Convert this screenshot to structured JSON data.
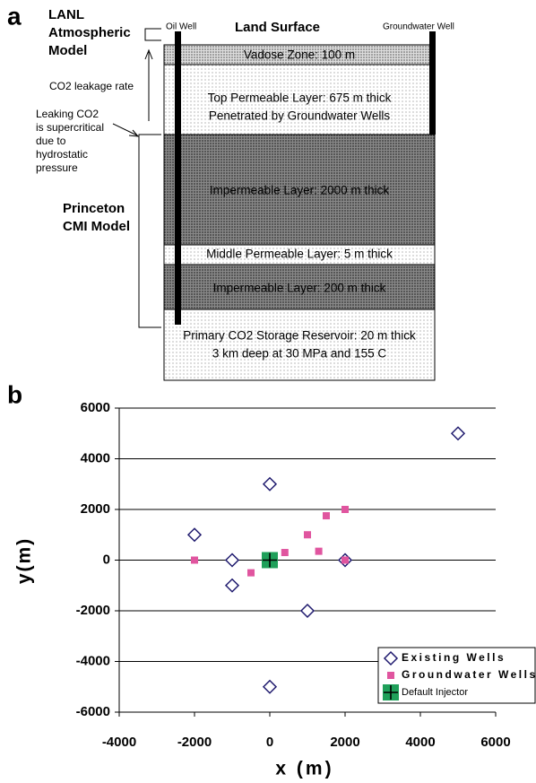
{
  "diagram": {
    "panel_label": "a",
    "lanl": [
      "LANL",
      "Atmospheric",
      "Model"
    ],
    "leakage_rate": "CO2 leakage rate",
    "leaking": [
      "Leaking CO2",
      "is supercritical",
      "due to",
      "hydrostatic",
      "pressure"
    ],
    "princeton": [
      "Princeton",
      "CMI Model"
    ],
    "oil_well": "Oil Well",
    "land_surface": "Land Surface",
    "groundwater_well": "Groundwater Well",
    "layers": [
      [
        "Vadose Zone: 100 m"
      ],
      [
        "Top Permeable Layer: 675 m thick",
        "Penetrated by Groundwater Wells"
      ],
      [
        "Impermeable Layer: 2000 m thick"
      ],
      [
        "Middle Permeable Layer: 5 m thick"
      ],
      [
        "Impermeable Layer: 200 m thick"
      ],
      [
        "Primary CO2 Storage Reservoir: 20 m thick",
        "3 km deep at 30 MPa and 155 C"
      ]
    ]
  },
  "chart_data": {
    "type": "scatter",
    "panel_label": "b",
    "x_label": "x (m)",
    "y_label": "y(m)",
    "xlim": [
      -4000,
      6000
    ],
    "xticks": [
      -4000,
      -2000,
      0,
      2000,
      4000,
      6000
    ],
    "ylim": [
      -6000,
      6000
    ],
    "yticks": [
      -6000,
      -4000,
      -2000,
      0,
      2000,
      4000,
      6000
    ],
    "grid": true,
    "legend": "lower right",
    "series": [
      {
        "name": "Existing Wells",
        "color": "#1f1a6e",
        "marker": "diamond",
        "x": [
          5000,
          0,
          -2000,
          -1000,
          2000,
          -1000,
          1000,
          0
        ],
        "values": [
          5000,
          3000,
          1000,
          0,
          0,
          -1000,
          -2000,
          -5000
        ]
      },
      {
        "name": "Groundwater Wells",
        "color": "#e0559f",
        "marker": "square",
        "x": [
          -2000,
          -500,
          400,
          1000,
          1300,
          1500,
          2000,
          2000
        ],
        "values": [
          0,
          -500,
          300,
          1000,
          350,
          1750,
          2000,
          0
        ]
      },
      {
        "name": "Default Injector",
        "color": "#1fa05a",
        "marker": "plus-square",
        "x": [
          0
        ],
        "values": [
          0
        ]
      }
    ]
  }
}
